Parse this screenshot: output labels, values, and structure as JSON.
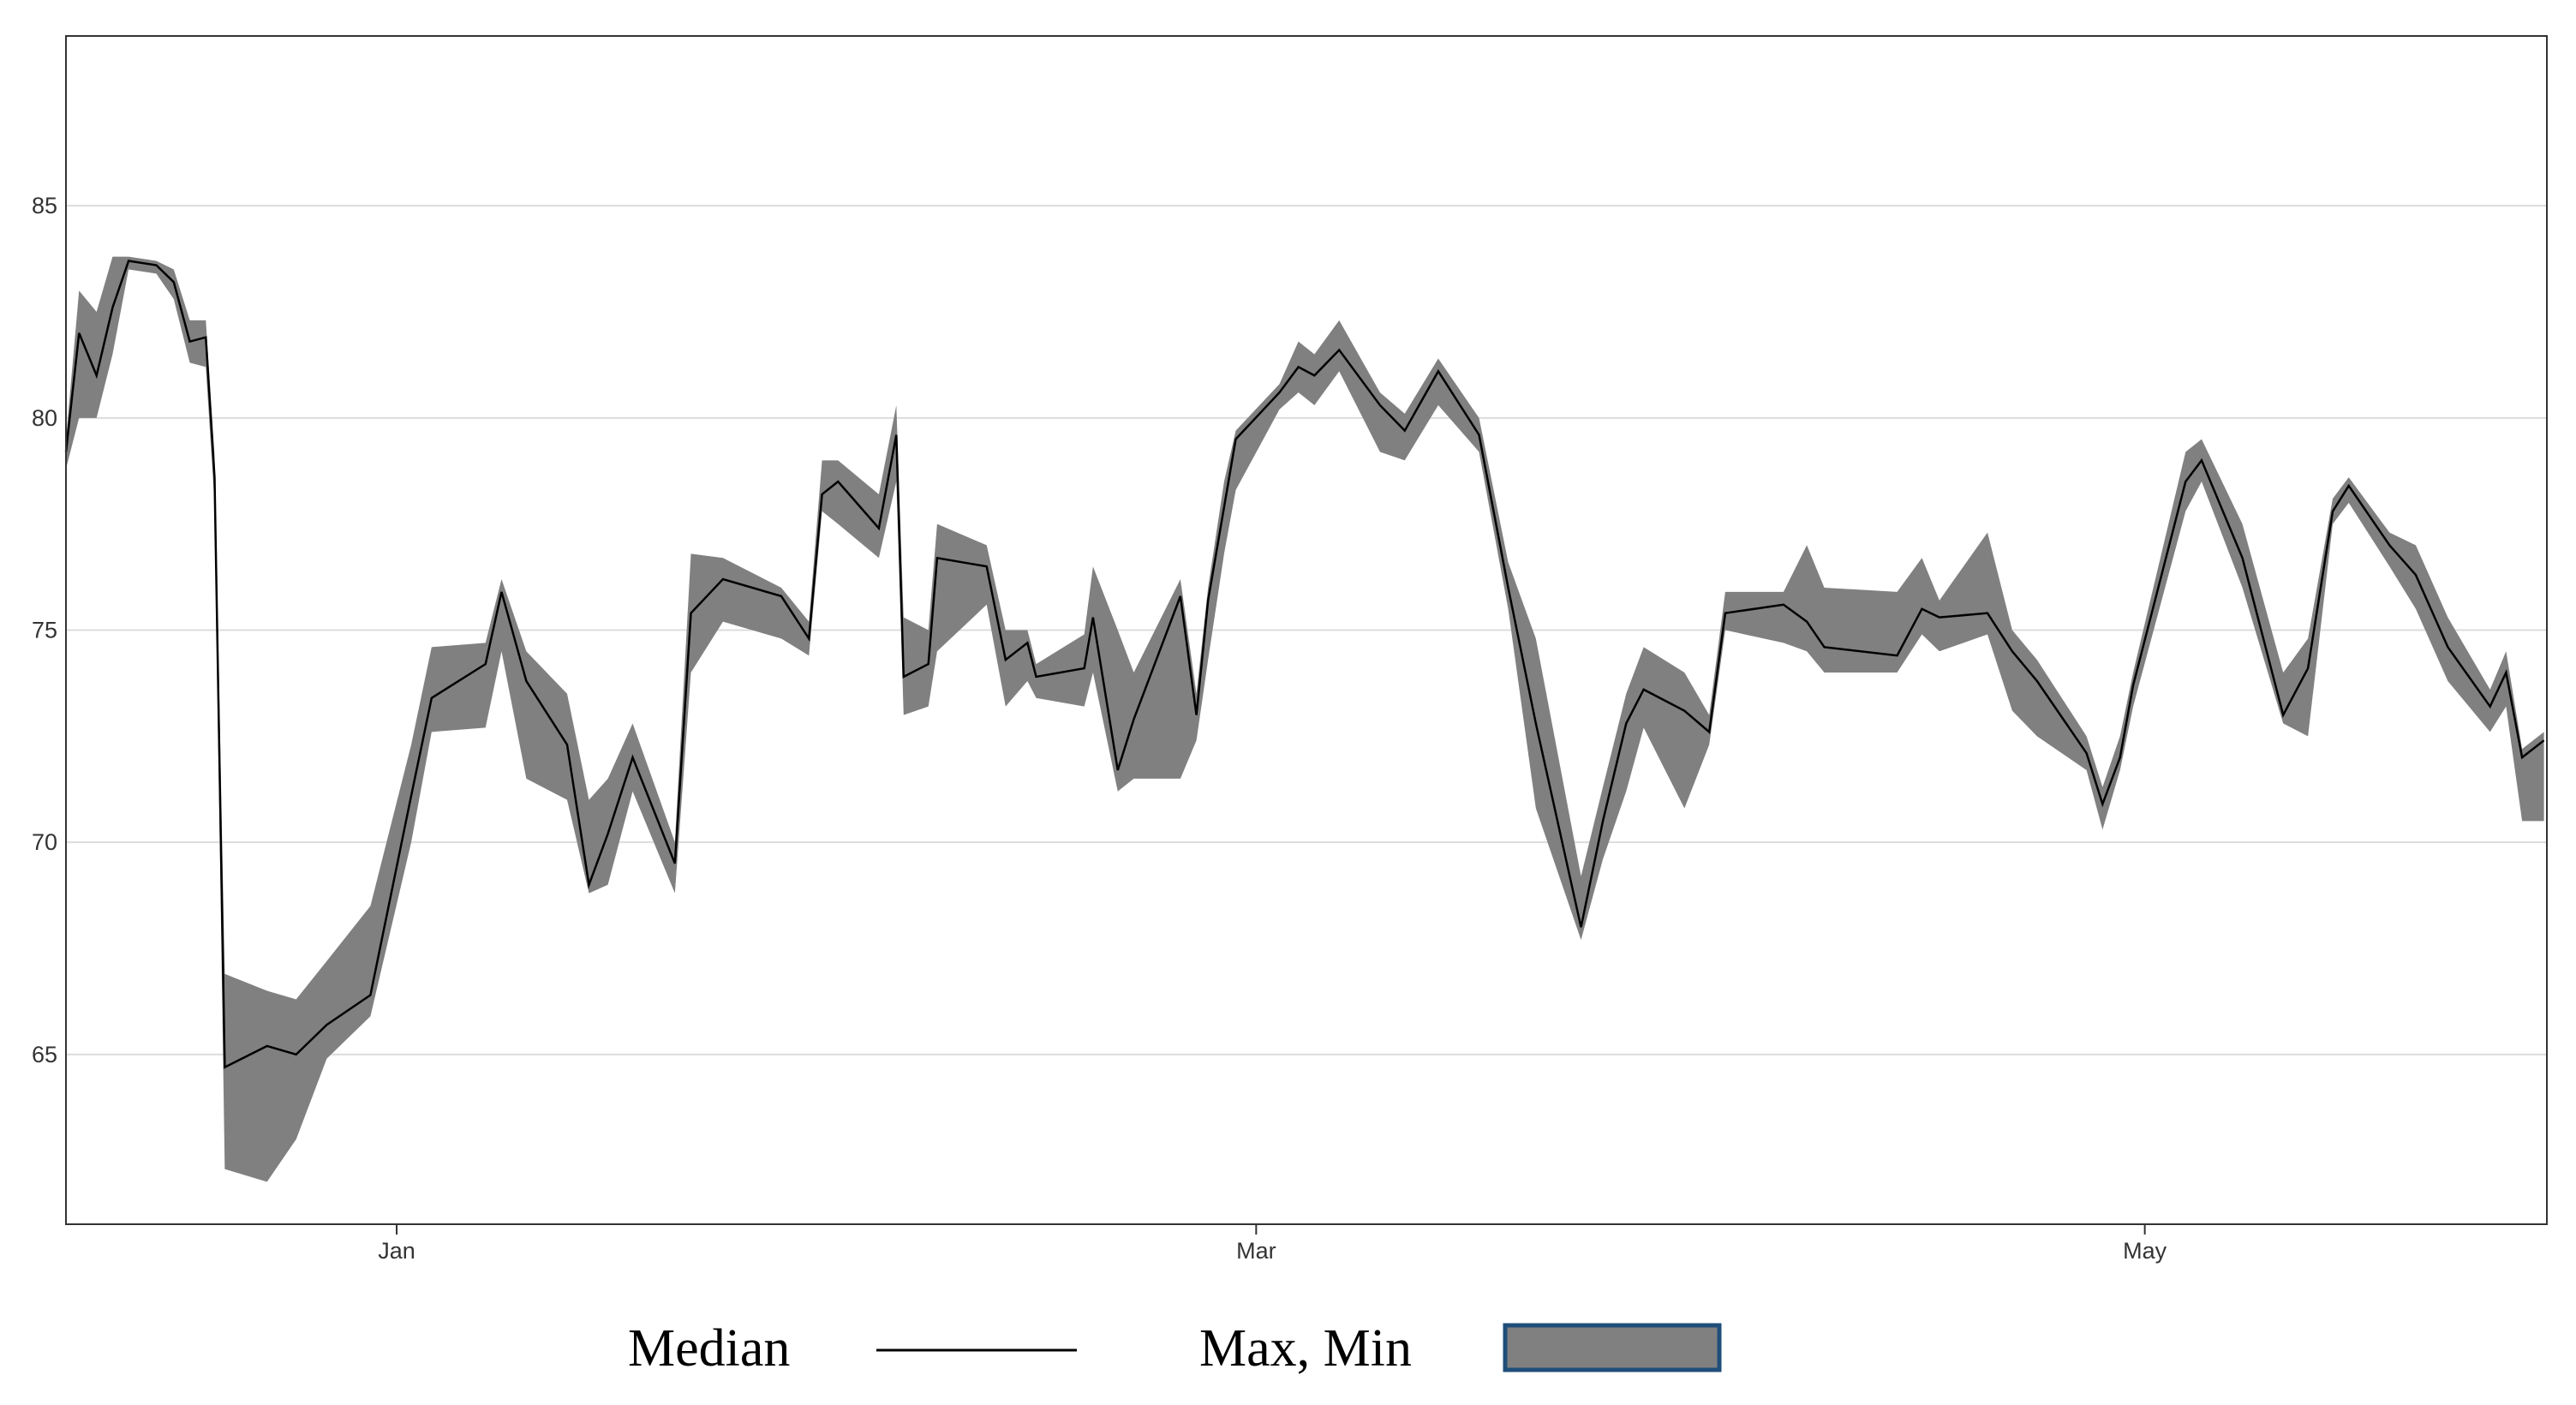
{
  "chart_data": {
    "type": "band-line",
    "x": [
      -22.7,
      -21.8,
      -20.6,
      -19.5,
      -18.4,
      -16.5,
      -15.3,
      -14.2,
      -13.1,
      -12.5,
      -11.8,
      -8.9,
      -6.9,
      -4.8,
      -1.8,
      1.0,
      2.4,
      6.1,
      7.2,
      8.9,
      11.7,
      13.2,
      14.5,
      16.2,
      19.1,
      20.2,
      22.4,
      26.4,
      28.3,
      29.2,
      30.3,
      33.1,
      34.3,
      34.8,
      36.5,
      37.1,
      40.5,
      41.8,
      43.3,
      43.9,
      47.2,
      47.8,
      49.5,
      50.6,
      53.8,
      54.9,
      55.7,
      56.8,
      57.6,
      60.6,
      61.9,
      63.0,
      64.7,
      67.5,
      69.2,
      71.5,
      74.3,
      76.3,
      78.2,
      81.3,
      82.8,
      84.4,
      85.6,
      88.4,
      90.1,
      91.2,
      95.2,
      96.8,
      98.0,
      103.0,
      104.7,
      105.9,
      109.2,
      110.9,
      112.6,
      116.0,
      117.1,
      118.3,
      119.2,
      122.8,
      123.9,
      126.7,
      129.5,
      131.2,
      132.9,
      134.0,
      136.8,
      138.6,
      140.8,
      143.7,
      144.8,
      145.9,
      147.4
    ],
    "series": [
      {
        "name": "Median",
        "color": "#000000",
        "values": [
          79.2,
          82,
          81,
          82.6,
          83.7,
          83.6,
          83.2,
          81.8,
          81.9,
          78.6,
          64.7,
          65.2,
          65,
          65.7,
          66.4,
          71.1,
          73.4,
          74.2,
          75.9,
          73.8,
          72.3,
          69,
          70.2,
          72,
          69.5,
          75.4,
          76.2,
          75.8,
          74.8,
          78.2,
          78.5,
          77.4,
          79.6,
          73.9,
          74.2,
          76.7,
          76.5,
          74.3,
          74.7,
          73.9,
          74.1,
          75.3,
          71.7,
          72.9,
          75.8,
          73,
          75.7,
          77.9,
          79.5,
          80.6,
          81.2,
          81,
          81.6,
          80.3,
          79.7,
          81.1,
          79.6,
          76,
          72.8,
          68,
          70.5,
          72.8,
          73.6,
          73.1,
          72.6,
          75.4,
          75.6,
          75.2,
          74.6,
          74.4,
          75.5,
          75.3,
          75.4,
          74.5,
          73.8,
          72.1,
          70.9,
          72,
          73.7,
          78.5,
          79,
          76.7,
          73,
          74.1,
          77.8,
          78.4,
          77,
          76.3,
          74.6,
          73.2,
          74,
          72,
          72.4
        ]
      },
      {
        "name": "Max, Min",
        "color": "#808080",
        "edgecolor": "#1f4e79",
        "upper": [
          79.5,
          83,
          82.5,
          83.8,
          83.8,
          83.7,
          83.5,
          82.3,
          82.3,
          79.1,
          66.9,
          66.5,
          66.3,
          67.2,
          68.5,
          72.3,
          74.6,
          74.7,
          76.2,
          74.5,
          73.5,
          71,
          71.5,
          72.8,
          70,
          76.8,
          76.7,
          76,
          75.2,
          79,
          79,
          78.2,
          80.3,
          75.3,
          75,
          77.5,
          77,
          75,
          75,
          74.2,
          74.9,
          76.5,
          75,
          74,
          76.2,
          73.5,
          76,
          78.5,
          79.7,
          80.8,
          81.8,
          81.5,
          82.3,
          80.6,
          80.1,
          81.4,
          80,
          76.6,
          74.8,
          69.2,
          71.3,
          73.5,
          74.6,
          74,
          73,
          75.9,
          75.9,
          77,
          76,
          75.9,
          76.7,
          75.7,
          77.3,
          75,
          74.3,
          72.5,
          71.3,
          72.5,
          74,
          79.2,
          79.5,
          77.5,
          74,
          74.8,
          78.1,
          78.6,
          77.3,
          77,
          75.3,
          73.6,
          74.5,
          72.2,
          72.6
        ],
        "lower": [
          78.8,
          80,
          80,
          81.5,
          83.5,
          83.4,
          82.8,
          81.3,
          81.2,
          78,
          62.3,
          62,
          63,
          64.9,
          65.9,
          70,
          72.6,
          72.7,
          74.5,
          71.5,
          71,
          68.8,
          69,
          71.2,
          68.8,
          74,
          75.2,
          74.8,
          74.4,
          77.8,
          77.5,
          76.7,
          78.5,
          73,
          73.2,
          74.5,
          75.6,
          73.2,
          73.8,
          73.4,
          73.2,
          74,
          71.2,
          71.5,
          71.5,
          72.4,
          74.3,
          76.8,
          78.3,
          80.2,
          80.6,
          80.3,
          81.1,
          79.2,
          79,
          80.3,
          79.2,
          75.5,
          70.8,
          67.7,
          69.6,
          71.2,
          72.7,
          70.8,
          72.3,
          75,
          74.7,
          74.5,
          74,
          74,
          74.9,
          74.5,
          74.9,
          73.1,
          72.5,
          71.7,
          70.3,
          71.7,
          73.2,
          77.8,
          78.5,
          76,
          72.8,
          72.5,
          77.5,
          78,
          76.5,
          75.5,
          73.8,
          72.6,
          73.2,
          70.5,
          70.5
        ]
      }
    ],
    "xlim": [
      -22.7,
      147.6
    ],
    "ylim": [
      61,
      89
    ],
    "xticks": [
      {
        "value": 0,
        "label": "Jan"
      },
      {
        "value": 59,
        "label": "Mar"
      },
      {
        "value": 120,
        "label": "May"
      }
    ],
    "yticks": [
      65,
      70,
      75,
      80,
      85
    ],
    "grid": true
  }
}
